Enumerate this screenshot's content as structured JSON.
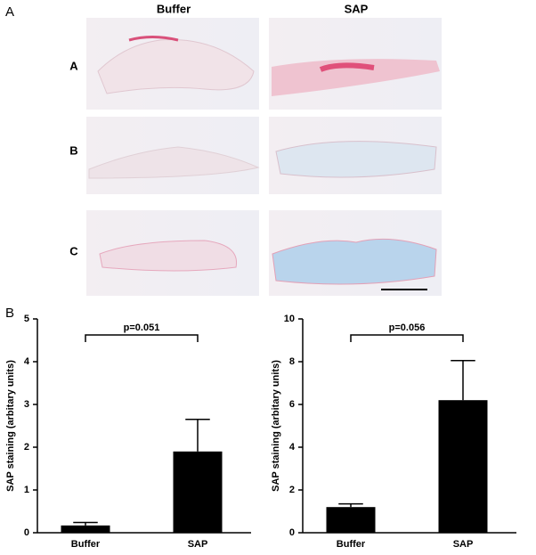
{
  "panel_a": {
    "label": "A",
    "columns": [
      "Buffer",
      "SAP"
    ],
    "rows": [
      "A",
      "B",
      "C"
    ]
  },
  "panel_b_label": "B",
  "chart_data": [
    {
      "type": "bar",
      "ylabel": "SAP staining (arbitary units)",
      "categories": [
        "Buffer",
        "SAP"
      ],
      "values": [
        0.17,
        1.9
      ],
      "errors": [
        0.07,
        0.75
      ],
      "color": "#000000",
      "ylim": [
        0,
        5
      ],
      "yticks": [
        0,
        1,
        2,
        3,
        4,
        5
      ],
      "annotation": "p=0.051"
    },
    {
      "type": "bar",
      "ylabel": "SAP staining (arbitary units)",
      "categories": [
        "Buffer",
        "SAP"
      ],
      "values": [
        1.2,
        6.2
      ],
      "errors": [
        0.15,
        1.85
      ],
      "color": "#000000",
      "ylim": [
        0,
        10
      ],
      "yticks": [
        0,
        2,
        4,
        6,
        8,
        10
      ],
      "annotation": "p=0.056"
    }
  ]
}
